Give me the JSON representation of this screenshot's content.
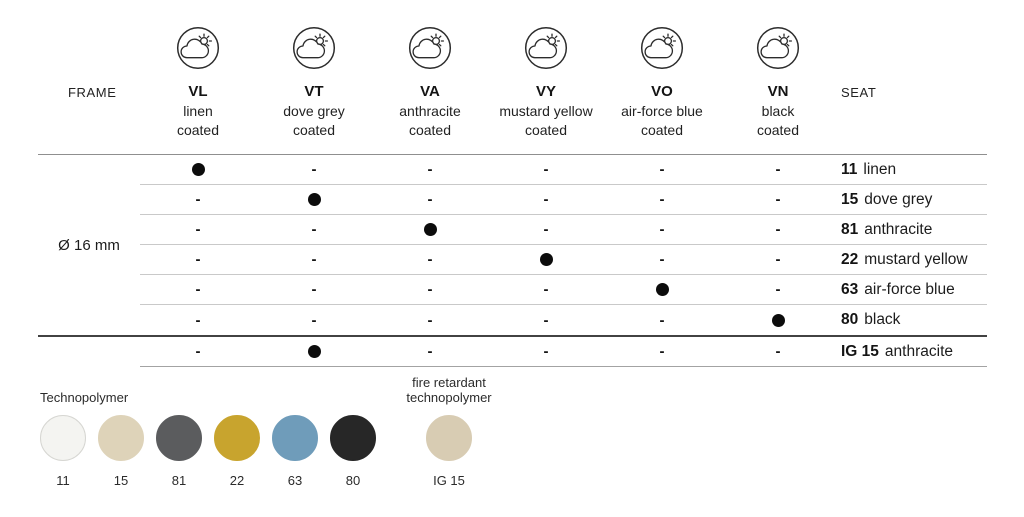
{
  "header": {
    "frame_label": "FRAME",
    "seat_label": "SEAT",
    "columns": [
      {
        "code": "VL",
        "name": "linen",
        "finish": "coated"
      },
      {
        "code": "VT",
        "name": "dove grey",
        "finish": "coated"
      },
      {
        "code": "VA",
        "name": "anthracite",
        "finish": "coated"
      },
      {
        "code": "VY",
        "name": "mustard yellow",
        "finish": "coated"
      },
      {
        "code": "VO",
        "name": "air-force blue",
        "finish": "coated"
      },
      {
        "code": "VN",
        "name": "black",
        "finish": "coated"
      }
    ],
    "icon": "outdoor-weather-resistant-icon"
  },
  "table": {
    "frame_size": "Ø 16 mm",
    "rows": [
      {
        "code": "11",
        "name": "linen",
        "cells": [
          "●",
          "-",
          "-",
          "-",
          "-",
          "-"
        ]
      },
      {
        "code": "15",
        "name": "dove grey",
        "cells": [
          "-",
          "●",
          "-",
          "-",
          "-",
          "-"
        ]
      },
      {
        "code": "81",
        "name": "anthracite",
        "cells": [
          "-",
          "-",
          "●",
          "-",
          "-",
          "-"
        ]
      },
      {
        "code": "22",
        "name": "mustard yellow",
        "cells": [
          "-",
          "-",
          "-",
          "●",
          "-",
          "-"
        ]
      },
      {
        "code": "63",
        "name": "air-force blue",
        "cells": [
          "-",
          "-",
          "-",
          "-",
          "●",
          "-"
        ]
      },
      {
        "code": "80",
        "name": "black",
        "cells": [
          "-",
          "-",
          "-",
          "-",
          "-",
          "●"
        ]
      },
      {
        "code": "IG 15",
        "name": "anthracite",
        "cells": [
          "-",
          "●",
          "-",
          "-",
          "-",
          "-"
        ]
      }
    ]
  },
  "swatches": {
    "technopolymer_label": "Technopolymer",
    "fire_label": "fire retardant technopolymer",
    "items": [
      {
        "code": "11",
        "color": "#f4f4f1",
        "border": "#d6d6d2"
      },
      {
        "code": "15",
        "color": "#ded3b9",
        "border": "#ded3b9"
      },
      {
        "code": "81",
        "color": "#5b5c5e",
        "border": "#5b5c5e"
      },
      {
        "code": "22",
        "color": "#c8a42e",
        "border": "#c8a42e"
      },
      {
        "code": "63",
        "color": "#6f9cba",
        "border": "#6f9cba"
      },
      {
        "code": "80",
        "color": "#272727",
        "border": "#272727"
      }
    ],
    "fire_item": {
      "code": "IG 15",
      "color": "#d8ccb3",
      "border": "#d8ccb3"
    }
  }
}
